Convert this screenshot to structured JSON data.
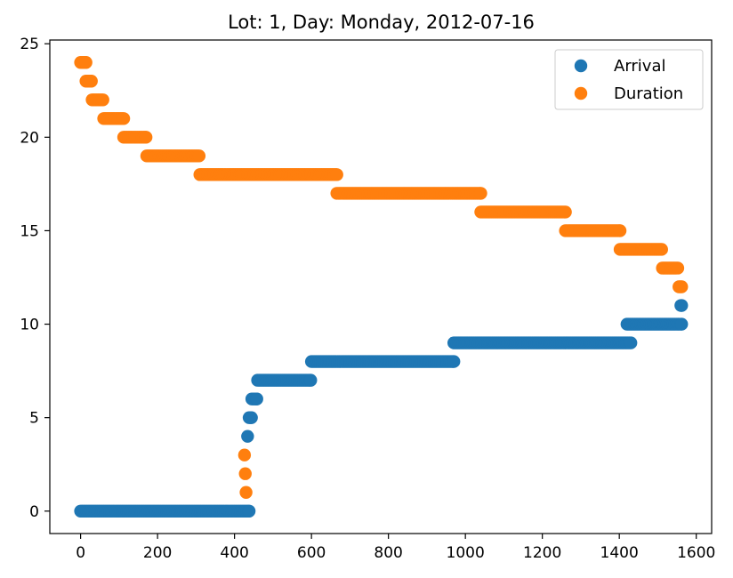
{
  "chart_data": {
    "type": "scatter",
    "title": "Lot: 1, Day: Monday, 2012-07-16",
    "xlabel": "",
    "ylabel": "",
    "xlim": [
      -80,
      1640
    ],
    "ylim": [
      -1.2,
      25.2
    ],
    "xticks": [
      0,
      200,
      400,
      600,
      800,
      1000,
      1200,
      1400,
      1600
    ],
    "yticks": [
      0,
      5,
      10,
      15,
      20,
      25
    ],
    "grid": false,
    "legend_position": "top-right",
    "series": [
      {
        "name": "Arrival",
        "color": "#1f77b4",
        "segments": [
          {
            "y": 0,
            "x_start": 0,
            "x_end": 438
          },
          {
            "y": 4,
            "x_start": 434,
            "x_end": 434
          },
          {
            "y": 5,
            "x_start": 438,
            "x_end": 444
          },
          {
            "y": 6,
            "x_start": 445,
            "x_end": 458
          },
          {
            "y": 7,
            "x_start": 460,
            "x_end": 598
          },
          {
            "y": 8,
            "x_start": 600,
            "x_end": 970
          },
          {
            "y": 9,
            "x_start": 970,
            "x_end": 1430
          },
          {
            "y": 10,
            "x_start": 1420,
            "x_end": 1562
          },
          {
            "y": 11,
            "x_start": 1560,
            "x_end": 1562
          }
        ]
      },
      {
        "name": "Duration",
        "color": "#ff7f0e",
        "segments": [
          {
            "y": 24,
            "x_start": 0,
            "x_end": 14
          },
          {
            "y": 23,
            "x_start": 14,
            "x_end": 28
          },
          {
            "y": 22,
            "x_start": 30,
            "x_end": 58
          },
          {
            "y": 21,
            "x_start": 60,
            "x_end": 112
          },
          {
            "y": 20,
            "x_start": 112,
            "x_end": 170
          },
          {
            "y": 19,
            "x_start": 172,
            "x_end": 308
          },
          {
            "y": 18,
            "x_start": 310,
            "x_end": 666
          },
          {
            "y": 17,
            "x_start": 666,
            "x_end": 1040
          },
          {
            "y": 16,
            "x_start": 1040,
            "x_end": 1260
          },
          {
            "y": 15,
            "x_start": 1260,
            "x_end": 1402
          },
          {
            "y": 14,
            "x_start": 1402,
            "x_end": 1510
          },
          {
            "y": 13,
            "x_start": 1512,
            "x_end": 1552
          },
          {
            "y": 12,
            "x_start": 1555,
            "x_end": 1562
          },
          {
            "y": 3,
            "x_start": 426,
            "x_end": 426
          },
          {
            "y": 2,
            "x_start": 428,
            "x_end": 428
          },
          {
            "y": 1,
            "x_start": 430,
            "x_end": 430
          }
        ]
      }
    ]
  }
}
